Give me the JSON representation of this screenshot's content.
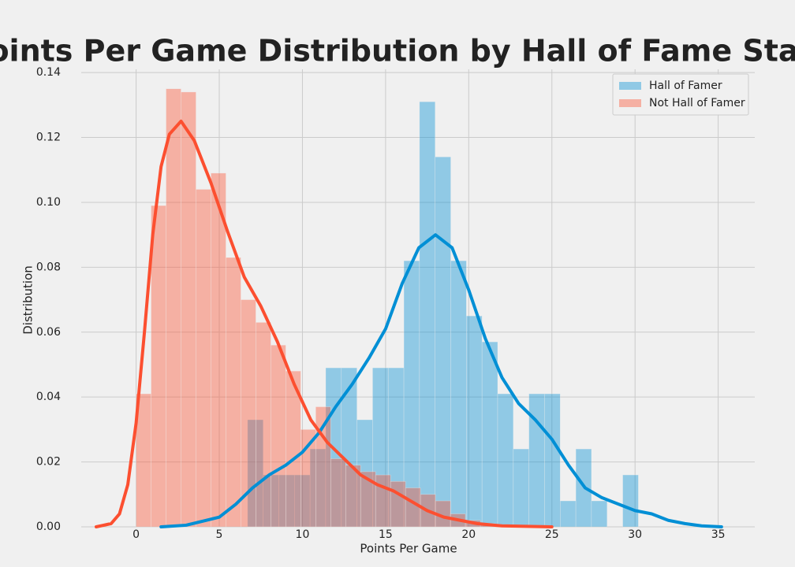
{
  "chart_data": {
    "type": "histogram",
    "title": "Points Per Game Distribution by Hall of Fame Status",
    "x_label": "Points Per Game",
    "y_label": "Distribution",
    "xlim": [
      -3.3,
      37.2
    ],
    "ylim": [
      0,
      0.141
    ],
    "xticks": [
      0,
      5,
      10,
      15,
      20,
      25,
      30,
      35
    ],
    "yticks": [
      {
        "value": 0,
        "label": "0.00"
      },
      {
        "value": 0.02,
        "label": "0.02"
      },
      {
        "value": 0.04,
        "label": "0.04"
      },
      {
        "value": 0.06,
        "label": "0.06"
      },
      {
        "value": 0.08,
        "label": "0.08"
      },
      {
        "value": 0.1,
        "label": "0.10"
      },
      {
        "value": 0.12,
        "label": "0.12"
      },
      {
        "value": 0.14,
        "label": "0.14"
      }
    ],
    "grid": true,
    "legend": "upper right",
    "series": [
      {
        "name": "Hall of Famer",
        "color": "#008fd5",
        "bins": [
          6.7,
          7.64,
          8.58,
          9.52,
          10.46,
          11.4,
          12.34,
          13.28,
          14.22,
          15.16,
          16.1,
          17.04,
          17.98,
          18.92,
          19.86,
          20.8,
          21.74,
          22.68,
          23.62,
          24.56,
          25.5,
          26.44,
          27.38,
          28.32,
          29.26,
          30.2
        ],
        "values": [
          0.033,
          0.016,
          0.016,
          0.016,
          0.024,
          0.049,
          0.049,
          0.033,
          0.049,
          0.049,
          0.082,
          0.131,
          0.114,
          0.082,
          0.065,
          0.057,
          0.041,
          0.024,
          0.041,
          0.041,
          0.008,
          0.024,
          0.008,
          0,
          0.016
        ],
        "kde": {
          "x": [
            1.5,
            3,
            5,
            6,
            7,
            8,
            9,
            10,
            11,
            12,
            13,
            14,
            15,
            16,
            17,
            18,
            19,
            20,
            21,
            22,
            23,
            24,
            25,
            26,
            27,
            28,
            29,
            30,
            31,
            32,
            33,
            34,
            35.2
          ],
          "values": [
            0,
            0.0005,
            0.003,
            0.007,
            0.012,
            0.016,
            0.019,
            0.023,
            0.029,
            0.037,
            0.044,
            0.052,
            0.061,
            0.075,
            0.086,
            0.09,
            0.086,
            0.073,
            0.058,
            0.046,
            0.038,
            0.033,
            0.027,
            0.019,
            0.012,
            0.009,
            0.007,
            0.005,
            0.004,
            0.002,
            0.001,
            0.0003,
            0
          ]
        }
      },
      {
        "name": "Not Hall of Famer",
        "color": "#fc4f30",
        "bins": [
          0,
          0.9,
          1.8,
          2.7,
          3.6,
          4.5,
          5.4,
          6.3,
          7.2,
          8.1,
          9,
          9.9,
          10.8,
          11.7,
          12.6,
          13.5,
          14.4,
          15.3,
          16.2,
          17.1,
          18,
          18.9,
          19.8,
          20.7,
          21.6
        ],
        "values": [
          0.041,
          0.099,
          0.135,
          0.134,
          0.104,
          0.109,
          0.083,
          0.07,
          0.063,
          0.056,
          0.048,
          0.03,
          0.037,
          0.021,
          0.019,
          0.017,
          0.016,
          0.014,
          0.012,
          0.01,
          0.008,
          0.004,
          0.002,
          0.001
        ],
        "kde": {
          "x": [
            -2.4,
            -1.5,
            -1,
            -0.5,
            0,
            0.5,
            1,
            1.5,
            2,
            2.7,
            3.5,
            4.5,
            5.5,
            6.5,
            7.5,
            8.5,
            9.5,
            10.5,
            11.5,
            12.5,
            13.5,
            14.5,
            15.5,
            16.5,
            17.5,
            18.5,
            19.5,
            20.5,
            22,
            25
          ],
          "values": [
            0,
            0.001,
            0.004,
            0.013,
            0.032,
            0.06,
            0.09,
            0.111,
            0.121,
            0.125,
            0.119,
            0.106,
            0.091,
            0.077,
            0.068,
            0.057,
            0.044,
            0.033,
            0.026,
            0.021,
            0.016,
            0.013,
            0.011,
            0.008,
            0.005,
            0.003,
            0.002,
            0.001,
            0.0003,
            0
          ]
        }
      }
    ]
  }
}
